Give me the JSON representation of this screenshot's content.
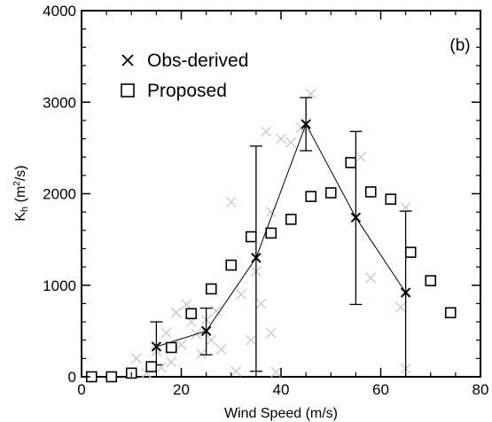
{
  "chart_data": {
    "type": "scatter",
    "panel_label": "(b)",
    "xlabel": "Wind Speed (m/s)",
    "ylabel": {
      "base": "K",
      "sub": "h",
      "unit_open": " (m",
      "sup": "2",
      "unit_close": "/s)"
    },
    "xlim": [
      0,
      80
    ],
    "ylim": [
      0,
      4000
    ],
    "x_ticks": [
      0,
      20,
      40,
      60,
      80
    ],
    "y_ticks": [
      0,
      1000,
      2000,
      3000,
      4000
    ],
    "grid": false,
    "legend_position": "top-left",
    "legend": [
      {
        "label": "Obs-derived",
        "marker": "x"
      },
      {
        "label": "Proposed",
        "marker": "square"
      }
    ],
    "series": [
      {
        "name": "Obs-derived",
        "marker": "x",
        "color": "#000000",
        "connected": true,
        "points": [
          {
            "x": 15,
            "y": 330,
            "err_low": 130,
            "err_high": 600
          },
          {
            "x": 25,
            "y": 500,
            "err_low": 240,
            "err_high": 750
          },
          {
            "x": 35,
            "y": 1300,
            "err_low": 60,
            "err_high": 2520
          },
          {
            "x": 45,
            "y": 2760,
            "err_low": 2470,
            "err_high": 3050
          },
          {
            "x": 55,
            "y": 1740,
            "err_low": 790,
            "err_high": 2680
          },
          {
            "x": 65,
            "y": 920,
            "err_low": 0,
            "err_high": 1810
          }
        ]
      },
      {
        "name": "Proposed",
        "marker": "square",
        "color": "#000000",
        "connected": false,
        "points": [
          {
            "x": 2,
            "y": 0
          },
          {
            "x": 6,
            "y": 0
          },
          {
            "x": 10,
            "y": 40
          },
          {
            "x": 14,
            "y": 110
          },
          {
            "x": 18,
            "y": 320
          },
          {
            "x": 22,
            "y": 690
          },
          {
            "x": 26,
            "y": 960
          },
          {
            "x": 30,
            "y": 1220
          },
          {
            "x": 34,
            "y": 1530
          },
          {
            "x": 38,
            "y": 1570
          },
          {
            "x": 42,
            "y": 1720
          },
          {
            "x": 46,
            "y": 1970
          },
          {
            "x": 50,
            "y": 2010
          },
          {
            "x": 54,
            "y": 2340
          },
          {
            "x": 58,
            "y": 2020
          },
          {
            "x": 62,
            "y": 1940
          },
          {
            "x": 66,
            "y": 1360
          },
          {
            "x": 70,
            "y": 1050
          },
          {
            "x": 74,
            "y": 700
          }
        ]
      },
      {
        "marker": "x",
        "color": "#c8c8c8",
        "connected": false,
        "points": [
          {
            "x": 11,
            "y": 200
          },
          {
            "x": 13,
            "y": 40
          },
          {
            "x": 15,
            "y": 280
          },
          {
            "x": 16,
            "y": 100
          },
          {
            "x": 17,
            "y": 480
          },
          {
            "x": 18,
            "y": 160
          },
          {
            "x": 19,
            "y": 700
          },
          {
            "x": 20,
            "y": 350
          },
          {
            "x": 21,
            "y": 790
          },
          {
            "x": 22,
            "y": 600
          },
          {
            "x": 23,
            "y": 470
          },
          {
            "x": 24,
            "y": 250
          },
          {
            "x": 25,
            "y": 620
          },
          {
            "x": 26,
            "y": 400
          },
          {
            "x": 27,
            "y": 720
          },
          {
            "x": 28,
            "y": 300
          },
          {
            "x": 30,
            "y": 1910
          },
          {
            "x": 31,
            "y": 60
          },
          {
            "x": 32,
            "y": 900
          },
          {
            "x": 34,
            "y": 400
          },
          {
            "x": 35,
            "y": 1150
          },
          {
            "x": 36,
            "y": 800
          },
          {
            "x": 37,
            "y": 2680
          },
          {
            "x": 38,
            "y": 1800
          },
          {
            "x": 38,
            "y": 480
          },
          {
            "x": 39,
            "y": 50
          },
          {
            "x": 40,
            "y": 2600
          },
          {
            "x": 42,
            "y": 2560
          },
          {
            "x": 44,
            "y": 2720
          },
          {
            "x": 46,
            "y": 3090
          },
          {
            "x": 56,
            "y": 2400
          },
          {
            "x": 58,
            "y": 1080
          },
          {
            "x": 64,
            "y": 760
          },
          {
            "x": 65,
            "y": 90
          },
          {
            "x": 65,
            "y": 1850
          }
        ]
      }
    ]
  }
}
